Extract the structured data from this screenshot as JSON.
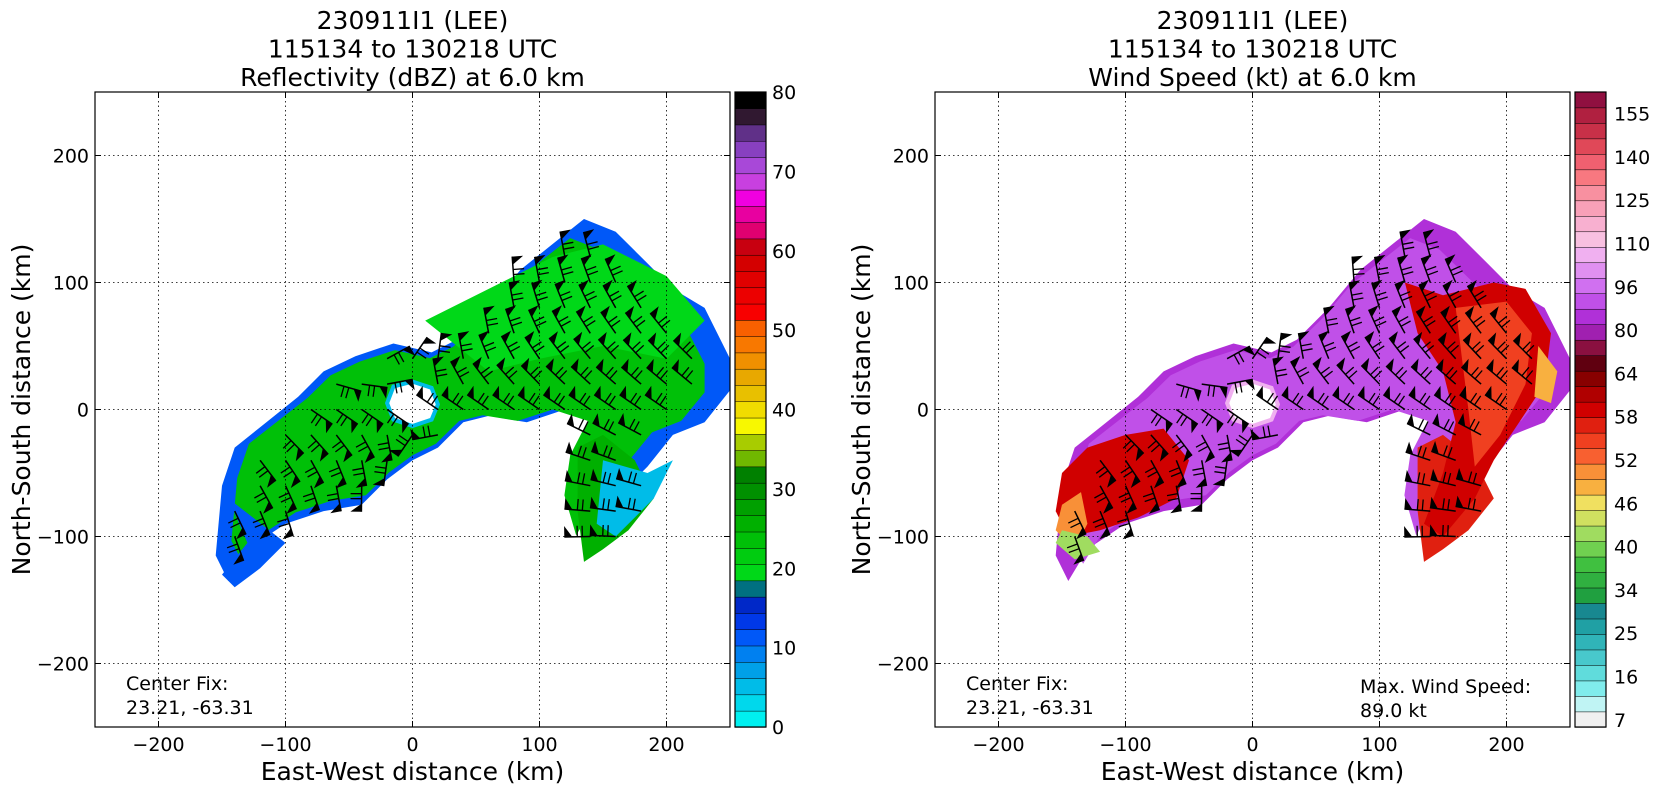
{
  "chart_data": [
    {
      "type": "heatmap",
      "title": [
        "230911I1 (LEE)",
        "115134 to 130218 UTC",
        "Reflectivity (dBZ) at 6.0 km"
      ],
      "xlabel": "East-West distance (km)",
      "ylabel": "North-South distance (km)",
      "xlim": [
        -250,
        250
      ],
      "ylim": [
        -250,
        250
      ],
      "xticks": [
        -200,
        -100,
        0,
        100,
        200
      ],
      "yticks": [
        -200,
        -100,
        0,
        100,
        200
      ],
      "grid": true,
      "annotation": [
        "Center Fix:",
        "23.21, -63.31"
      ],
      "colorbar": {
        "min": 0,
        "max": 80,
        "ticks": [
          0,
          10,
          20,
          30,
          40,
          50,
          60,
          70,
          80
        ],
        "colors": [
          "#00f0f0",
          "#00d8ec",
          "#00bce8",
          "#00a0e8",
          "#0080f0",
          "#0058f8",
          "#0038e8",
          "#0028c8",
          "#007080",
          "#00d818",
          "#00cc10",
          "#00c008",
          "#00b000",
          "#00a000",
          "#009000",
          "#008000",
          "#70b800",
          "#a8cc00",
          "#f8f800",
          "#f0dc00",
          "#e8c000",
          "#e8a800",
          "#f09000",
          "#f87800",
          "#f86000",
          "#f80000",
          "#ec0000",
          "#e00000",
          "#d40000",
          "#c80010",
          "#e00070",
          "#e800a0",
          "#f000e0",
          "#c840e0",
          "#a848d8",
          "#8840c0",
          "#603088",
          "#301830",
          "#000000"
        ]
      },
      "series": [
        {
          "name": "wind barbs"
        }
      ]
    },
    {
      "type": "heatmap",
      "title": [
        "230911I1 (LEE)",
        "115134 to 130218 UTC",
        "Wind Speed (kt) at 6.0 km"
      ],
      "xlabel": "East-West distance (km)",
      "ylabel": "North-South distance (km)",
      "xlim": [
        -250,
        250
      ],
      "ylim": [
        -250,
        250
      ],
      "xticks": [
        -200,
        -100,
        0,
        100,
        200
      ],
      "yticks": [
        -200,
        -100,
        0,
        100,
        200
      ],
      "grid": true,
      "annotation": [
        "Center Fix:",
        "23.21, -63.31"
      ],
      "annotation2": [
        "Max. Wind Speed:",
        "89.0 kt"
      ],
      "colorbar": {
        "ticks": [
          "7",
          "16",
          "25",
          "34",
          "40",
          "46",
          "52",
          "58",
          "64",
          "80",
          "96",
          "110",
          "125",
          "140",
          "155"
        ],
        "colors": [
          "#f0f0f0",
          "#c0f4f4",
          "#80ecec",
          "#60dcdc",
          "#48c8cc",
          "#30b4b8",
          "#20a0a4",
          "#188890",
          "#20a040",
          "#30b040",
          "#40c040",
          "#70d050",
          "#a0dc60",
          "#d0e060",
          "#f0e060",
          "#f8b040",
          "#f89038",
          "#f86030",
          "#f04020",
          "#e02010",
          "#d00000",
          "#b00000",
          "#880000",
          "#600010",
          "#8a1040",
          "#a020b0",
          "#b030d8",
          "#c050e8",
          "#d070f0",
          "#e090f0",
          "#f0b0f0",
          "#f8c0e0",
          "#f8b0d0",
          "#f8a0b8",
          "#f890a0",
          "#f87880",
          "#f06070",
          "#e04858",
          "#c83048",
          "#b02040",
          "#901040"
        ]
      },
      "series": [
        {
          "name": "wind barbs"
        }
      ]
    }
  ]
}
